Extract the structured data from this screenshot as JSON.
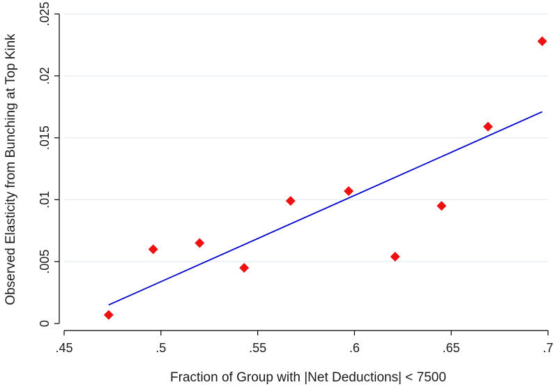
{
  "chart_data": {
    "type": "scatter",
    "title": "",
    "xlabel": "Fraction of Group with |Net Deductions| < 7500",
    "ylabel": "Observed Elasticity from Bunching at Top Kink",
    "xlim": [
      0.45,
      0.7
    ],
    "ylim": [
      0,
      0.025
    ],
    "xticks": [
      0.45,
      0.5,
      0.55,
      0.6,
      0.65,
      0.7
    ],
    "xtick_labels": [
      ".45",
      ".5",
      ".55",
      ".6",
      ".65",
      ".7"
    ],
    "yticks": [
      0,
      0.005,
      0.01,
      0.015,
      0.02,
      0.025
    ],
    "ytick_labels": [
      "0",
      ".005",
      ".01",
      ".015",
      ".02",
      ".025"
    ],
    "grid": "horizontal",
    "series": [
      {
        "type": "scatter",
        "marker": "diamond",
        "color": "#ee1111",
        "points": [
          {
            "x": 0.473,
            "y": 0.0007
          },
          {
            "x": 0.496,
            "y": 0.006
          },
          {
            "x": 0.52,
            "y": 0.0065
          },
          {
            "x": 0.543,
            "y": 0.0045
          },
          {
            "x": 0.567,
            "y": 0.0099
          },
          {
            "x": 0.597,
            "y": 0.0107
          },
          {
            "x": 0.621,
            "y": 0.0054
          },
          {
            "x": 0.645,
            "y": 0.0095
          },
          {
            "x": 0.669,
            "y": 0.0159
          },
          {
            "x": 0.697,
            "y": 0.0228
          }
        ]
      },
      {
        "type": "line",
        "color": "#0000cc",
        "points": [
          {
            "x": 0.473,
            "y": 0.0015
          },
          {
            "x": 0.697,
            "y": 0.0171
          }
        ]
      }
    ]
  }
}
